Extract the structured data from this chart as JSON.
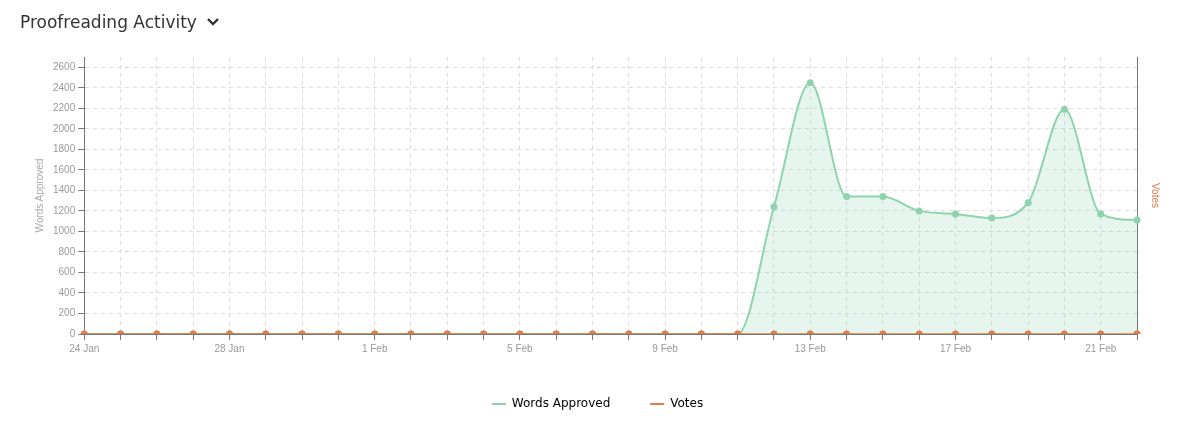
{
  "chart_data": {
    "type": "line",
    "title": "Proofreading Activity",
    "ylabel": "Words Approved",
    "y2label": "Votes",
    "categories": [
      "24 Jan",
      null,
      null,
      null,
      "28 Jan",
      null,
      null,
      null,
      "1 Feb",
      null,
      null,
      null,
      "5 Feb",
      null,
      null,
      null,
      "9 Feb",
      null,
      null,
      null,
      "13 Feb",
      null,
      null,
      null,
      "17 Feb",
      null,
      null,
      null,
      "21 Feb",
      null
    ],
    "series": [
      {
        "name": "Words Approved",
        "type": "area",
        "color": "#8fd3ad",
        "values": [
          0,
          0,
          0,
          0,
          0,
          0,
          0,
          0,
          0,
          0,
          0,
          0,
          0,
          0,
          0,
          0,
          0,
          0,
          0,
          1240,
          2450,
          1340,
          1340,
          1200,
          1170,
          1130,
          1280,
          2190,
          1170,
          1110
        ]
      },
      {
        "name": "Votes",
        "type": "line",
        "color": "#e07b4a",
        "values": [
          0,
          0,
          0,
          0,
          0,
          0,
          0,
          0,
          0,
          0,
          0,
          0,
          0,
          0,
          0,
          0,
          0,
          0,
          0,
          0,
          0,
          0,
          0,
          0,
          0,
          0,
          0,
          0,
          0,
          0
        ]
      }
    ],
    "ylim": [
      0,
      2700
    ],
    "yticks": [
      0,
      200,
      400,
      600,
      800,
      1000,
      1200,
      1400,
      1600,
      1800,
      2000,
      2200,
      2400,
      2600
    ],
    "grid": true,
    "legend": "bottom",
    "marker": "circle",
    "line_style": "solid"
  }
}
